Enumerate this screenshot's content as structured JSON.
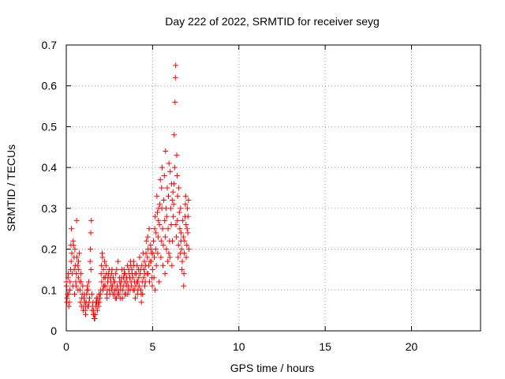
{
  "chart_data": {
    "type": "scatter",
    "title": "Day 222 of 2022, SRMTID for receiver seyg",
    "xlabel": "GPS time / hours",
    "ylabel": "SRMTID / TECUs",
    "xlim": [
      0,
      24
    ],
    "ylim": [
      0,
      0.7
    ],
    "xticks": [
      0,
      5,
      10,
      15,
      20
    ],
    "yticks": [
      0,
      0.1,
      0.2,
      0.3,
      0.4,
      0.5,
      0.6,
      0.7
    ],
    "grid": true,
    "marker": "+",
    "color": "#ff0000",
    "series": [
      {
        "name": "SRMTID",
        "points": [
          [
            0.0,
            0.12
          ],
          [
            0.05,
            0.08
          ],
          [
            0.1,
            0.13
          ],
          [
            0.15,
            0.06
          ],
          [
            0.2,
            0.1
          ],
          [
            0.25,
            0.15
          ],
          [
            0.3,
            0.25
          ],
          [
            0.35,
            0.14
          ],
          [
            0.4,
            0.22
          ],
          [
            0.45,
            0.18
          ],
          [
            0.5,
            0.2
          ],
          [
            0.55,
            0.12
          ],
          [
            0.6,
            0.27
          ],
          [
            0.65,
            0.16
          ],
          [
            0.7,
            0.13
          ],
          [
            0.75,
            0.19
          ],
          [
            0.8,
            0.1
          ],
          [
            0.85,
            0.14
          ],
          [
            0.9,
            0.08
          ],
          [
            0.95,
            0.11
          ],
          [
            1.0,
            0.06
          ],
          [
            1.05,
            0.09
          ],
          [
            1.1,
            0.05
          ],
          [
            1.15,
            0.07
          ],
          [
            1.2,
            0.1
          ],
          [
            1.25,
            0.06
          ],
          [
            1.3,
            0.12
          ],
          [
            1.35,
            0.08
          ],
          [
            1.4,
            0.2
          ],
          [
            1.45,
            0.27
          ],
          [
            1.5,
            0.05
          ],
          [
            1.55,
            0.07
          ],
          [
            1.6,
            0.04
          ],
          [
            1.65,
            0.03
          ],
          [
            1.7,
            0.06
          ],
          [
            1.75,
            0.08
          ],
          [
            1.8,
            0.05
          ],
          [
            1.85,
            0.07
          ],
          [
            1.9,
            0.09
          ],
          [
            1.95,
            0.08
          ],
          [
            2.0,
            0.1
          ],
          [
            2.05,
            0.12
          ],
          [
            2.1,
            0.18
          ],
          [
            2.15,
            0.15
          ],
          [
            2.2,
            0.11
          ],
          [
            2.25,
            0.13
          ],
          [
            2.3,
            0.16
          ],
          [
            2.35,
            0.09
          ],
          [
            2.4,
            0.12
          ],
          [
            2.45,
            0.14
          ],
          [
            2.5,
            0.1
          ],
          [
            2.55,
            0.13
          ],
          [
            2.6,
            0.11
          ],
          [
            2.65,
            0.15
          ],
          [
            2.7,
            0.09
          ],
          [
            2.75,
            0.12
          ],
          [
            2.8,
            0.1
          ],
          [
            2.85,
            0.14
          ],
          [
            2.9,
            0.08
          ],
          [
            2.95,
            0.11
          ],
          [
            3.0,
            0.17
          ],
          [
            3.05,
            0.09
          ],
          [
            3.1,
            0.12
          ],
          [
            3.15,
            0.1
          ],
          [
            3.2,
            0.13
          ],
          [
            3.25,
            0.08
          ],
          [
            3.3,
            0.11
          ],
          [
            3.35,
            0.15
          ],
          [
            3.4,
            0.12
          ],
          [
            3.45,
            0.09
          ],
          [
            3.5,
            0.13
          ],
          [
            3.55,
            0.16
          ],
          [
            3.6,
            0.11
          ],
          [
            3.65,
            0.14
          ],
          [
            3.7,
            0.1
          ],
          [
            3.75,
            0.12
          ],
          [
            3.8,
            0.15
          ],
          [
            3.85,
            0.13
          ],
          [
            3.9,
            0.17
          ],
          [
            3.95,
            0.12
          ],
          [
            4.0,
            0.08
          ],
          [
            4.05,
            0.14
          ],
          [
            4.1,
            0.16
          ],
          [
            4.15,
            0.1
          ],
          [
            4.2,
            0.13
          ],
          [
            4.25,
            0.18
          ],
          [
            4.3,
            0.15
          ],
          [
            4.35,
            0.07
          ],
          [
            4.4,
            0.12
          ],
          [
            4.45,
            0.19
          ],
          [
            4.5,
            0.15
          ],
          [
            4.55,
            0.11
          ],
          [
            4.6,
            0.16
          ],
          [
            4.65,
            0.22
          ],
          [
            4.7,
            0.18
          ],
          [
            4.75,
            0.14
          ],
          [
            4.8,
            0.25
          ],
          [
            4.85,
            0.17
          ],
          [
            4.9,
            0.2
          ],
          [
            4.95,
            0.13
          ],
          [
            5.0,
            0.15
          ],
          [
            5.05,
            0.22
          ],
          [
            5.1,
            0.18
          ],
          [
            5.15,
            0.28
          ],
          [
            5.2,
            0.24
          ],
          [
            5.25,
            0.33
          ],
          [
            5.3,
            0.19
          ],
          [
            5.35,
            0.3
          ],
          [
            5.4,
            0.26
          ],
          [
            5.45,
            0.37
          ],
          [
            5.5,
            0.22
          ],
          [
            5.55,
            0.4
          ],
          [
            5.6,
            0.16
          ],
          [
            5.65,
            0.32
          ],
          [
            5.7,
            0.27
          ],
          [
            5.75,
            0.44
          ],
          [
            5.8,
            0.2
          ],
          [
            5.85,
            0.35
          ],
          [
            5.9,
            0.25
          ],
          [
            5.95,
            0.41
          ],
          [
            6.0,
            0.18
          ],
          [
            6.05,
            0.3
          ],
          [
            6.1,
            0.36
          ],
          [
            6.15,
            0.22
          ],
          [
            6.2,
            0.28
          ],
          [
            6.25,
            0.48
          ],
          [
            6.3,
            0.56
          ],
          [
            6.32,
            0.62
          ],
          [
            6.34,
            0.65
          ],
          [
            6.35,
            0.26
          ],
          [
            6.4,
            0.43
          ],
          [
            6.45,
            0.33
          ],
          [
            6.5,
            0.21
          ],
          [
            6.55,
            0.29
          ],
          [
            6.6,
            0.19
          ],
          [
            6.65,
            0.24
          ],
          [
            6.7,
            0.15
          ],
          [
            6.75,
            0.27
          ],
          [
            6.8,
            0.11
          ],
          [
            6.85,
            0.22
          ],
          [
            6.9,
            0.31
          ],
          [
            6.95,
            0.18
          ],
          [
            7.0,
            0.25
          ],
          [
            7.05,
            0.28
          ],
          [
            7.1,
            0.2
          ],
          [
            0.02,
            0.11
          ],
          [
            0.08,
            0.09
          ],
          [
            0.12,
            0.14
          ],
          [
            0.18,
            0.07
          ],
          [
            0.22,
            0.12
          ],
          [
            0.28,
            0.17
          ],
          [
            0.32,
            0.19
          ],
          [
            0.38,
            0.11
          ],
          [
            0.42,
            0.21
          ],
          [
            0.48,
            0.09
          ],
          [
            0.52,
            0.16
          ],
          [
            0.58,
            0.14
          ],
          [
            0.62,
            0.18
          ],
          [
            0.68,
            0.1
          ],
          [
            0.72,
            0.15
          ],
          [
            0.78,
            0.12
          ],
          [
            0.82,
            0.07
          ],
          [
            0.88,
            0.06
          ],
          [
            0.92,
            0.09
          ],
          [
            0.98,
            0.05
          ],
          [
            1.02,
            0.08
          ],
          [
            1.08,
            0.07
          ],
          [
            1.12,
            0.04
          ],
          [
            1.18,
            0.09
          ],
          [
            1.22,
            0.11
          ],
          [
            1.28,
            0.06
          ],
          [
            1.32,
            0.07
          ],
          [
            1.38,
            0.17
          ],
          [
            1.42,
            0.24
          ],
          [
            1.48,
            0.09
          ],
          [
            1.52,
            0.06
          ],
          [
            1.58,
            0.05
          ],
          [
            1.62,
            0.03
          ],
          [
            1.68,
            0.04
          ],
          [
            1.72,
            0.07
          ],
          [
            1.78,
            0.06
          ],
          [
            1.82,
            0.08
          ],
          [
            1.88,
            0.06
          ],
          [
            1.92,
            0.07
          ],
          [
            1.98,
            0.09
          ],
          [
            2.02,
            0.14
          ],
          [
            2.08,
            0.19
          ],
          [
            2.12,
            0.1
          ],
          [
            2.18,
            0.13
          ],
          [
            2.22,
            0.17
          ],
          [
            2.28,
            0.11
          ],
          [
            2.32,
            0.14
          ],
          [
            2.38,
            0.1
          ],
          [
            2.42,
            0.13
          ],
          [
            2.48,
            0.15
          ],
          [
            2.52,
            0.09
          ],
          [
            2.58,
            0.12
          ],
          [
            2.62,
            0.14
          ],
          [
            2.68,
            0.11
          ],
          [
            2.72,
            0.13
          ],
          [
            2.78,
            0.09
          ],
          [
            2.82,
            0.12
          ],
          [
            2.88,
            0.1
          ],
          [
            2.92,
            0.15
          ],
          [
            2.98,
            0.09
          ],
          [
            3.02,
            0.1
          ],
          [
            3.08,
            0.13
          ],
          [
            3.12,
            0.08
          ],
          [
            3.18,
            0.12
          ],
          [
            3.22,
            0.15
          ],
          [
            3.28,
            0.1
          ],
          [
            3.32,
            0.13
          ],
          [
            3.38,
            0.09
          ],
          [
            3.42,
            0.14
          ],
          [
            3.48,
            0.11
          ],
          [
            3.52,
            0.12
          ],
          [
            3.58,
            0.1
          ],
          [
            3.62,
            0.15
          ],
          [
            3.68,
            0.13
          ],
          [
            3.72,
            0.17
          ],
          [
            3.78,
            0.11
          ],
          [
            3.82,
            0.14
          ],
          [
            3.88,
            0.1
          ],
          [
            3.92,
            0.16
          ],
          [
            3.98,
            0.14
          ],
          [
            4.02,
            0.11
          ],
          [
            4.08,
            0.12
          ],
          [
            4.12,
            0.09
          ],
          [
            4.18,
            0.15
          ],
          [
            4.22,
            0.11
          ],
          [
            4.28,
            0.14
          ],
          [
            4.32,
            0.1
          ],
          [
            4.38,
            0.16
          ],
          [
            4.42,
            0.09
          ],
          [
            4.48,
            0.13
          ],
          [
            4.52,
            0.17
          ],
          [
            4.58,
            0.12
          ],
          [
            4.62,
            0.19
          ],
          [
            4.68,
            0.14
          ],
          [
            4.72,
            0.23
          ],
          [
            4.78,
            0.16
          ],
          [
            4.82,
            0.12
          ],
          [
            4.88,
            0.21
          ],
          [
            4.92,
            0.17
          ],
          [
            4.98,
            0.11
          ],
          [
            5.02,
            0.19
          ],
          [
            5.08,
            0.13
          ],
          [
            5.12,
            0.25
          ],
          [
            5.18,
            0.2
          ],
          [
            5.22,
            0.16
          ],
          [
            5.28,
            0.29
          ],
          [
            5.32,
            0.23
          ],
          [
            5.38,
            0.12
          ],
          [
            5.42,
            0.31
          ],
          [
            5.48,
            0.18
          ],
          [
            5.52,
            0.35
          ],
          [
            5.58,
            0.25
          ],
          [
            5.62,
            0.21
          ],
          [
            5.68,
            0.38
          ],
          [
            5.72,
            0.14
          ],
          [
            5.78,
            0.3
          ],
          [
            5.82,
            0.28
          ],
          [
            5.88,
            0.17
          ],
          [
            5.92,
            0.33
          ],
          [
            5.98,
            0.22
          ],
          [
            6.02,
            0.39
          ],
          [
            6.08,
            0.26
          ],
          [
            6.12,
            0.16
          ],
          [
            6.18,
            0.34
          ],
          [
            6.22,
            0.31
          ],
          [
            6.28,
            0.4
          ],
          [
            6.38,
            0.23
          ],
          [
            6.42,
            0.38
          ],
          [
            6.48,
            0.18
          ],
          [
            6.52,
            0.35
          ],
          [
            6.58,
            0.25
          ],
          [
            6.62,
            0.3
          ],
          [
            6.68,
            0.2
          ],
          [
            6.72,
            0.17
          ],
          [
            6.78,
            0.23
          ],
          [
            6.82,
            0.14
          ],
          [
            6.88,
            0.28
          ],
          [
            6.92,
            0.33
          ],
          [
            6.98,
            0.21
          ],
          [
            7.02,
            0.3
          ],
          [
            0.03,
            0.07
          ],
          [
            0.14,
            0.09
          ],
          [
            0.27,
            0.21
          ],
          [
            0.46,
            0.15
          ],
          [
            0.57,
            0.11
          ],
          [
            0.71,
            0.17
          ],
          [
            0.86,
            0.12
          ],
          [
            1.13,
            0.06
          ],
          [
            1.27,
            0.1
          ],
          [
            1.43,
            0.15
          ],
          [
            1.57,
            0.04
          ],
          [
            1.76,
            0.07
          ],
          [
            2.04,
            0.16
          ],
          [
            2.16,
            0.11
          ],
          [
            2.36,
            0.08
          ],
          [
            2.64,
            0.1
          ],
          [
            2.84,
            0.08
          ],
          [
            3.14,
            0.11
          ],
          [
            3.36,
            0.14
          ],
          [
            3.56,
            0.09
          ],
          [
            3.74,
            0.16
          ],
          [
            3.94,
            0.1
          ],
          [
            4.14,
            0.12
          ],
          [
            4.34,
            0.09
          ],
          [
            4.56,
            0.14
          ],
          [
            4.74,
            0.2
          ],
          [
            4.94,
            0.19
          ],
          [
            5.14,
            0.1
          ],
          [
            5.34,
            0.27
          ],
          [
            5.54,
            0.3
          ],
          [
            5.74,
            0.23
          ],
          [
            5.94,
            0.19
          ],
          [
            6.14,
            0.32
          ],
          [
            6.24,
            0.36
          ],
          [
            6.44,
            0.27
          ],
          [
            6.64,
            0.22
          ],
          [
            6.84,
            0.19
          ],
          [
            6.94,
            0.26
          ],
          [
            7.04,
            0.24
          ],
          [
            7.08,
            0.32
          ]
        ]
      }
    ]
  }
}
